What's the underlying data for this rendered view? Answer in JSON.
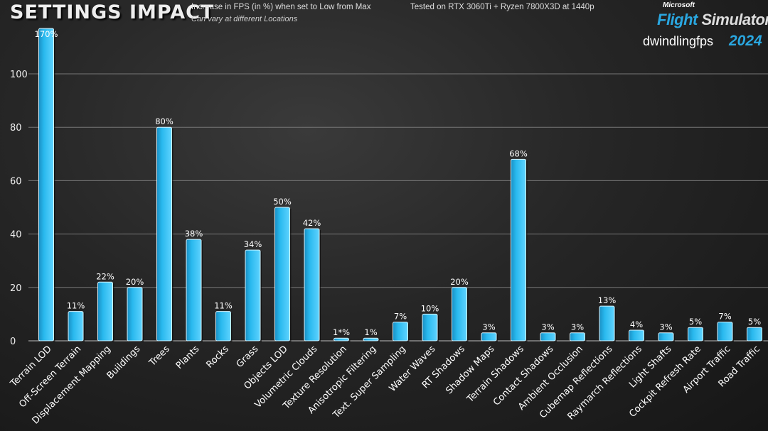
{
  "chart_data": {
    "type": "bar",
    "title": "SETTINGS IMPACT",
    "subtitle": "Increase in FPS (in %) when set to Low from Max",
    "note": "Can vary at different Locations",
    "test_info": "Tested on RTX 3060Ti + Ryzen 7800X3D at 1440p",
    "xlabel": "",
    "ylabel": "",
    "ylim": [
      0,
      117
    ],
    "yticks": [
      0,
      20,
      40,
      60,
      80,
      100
    ],
    "grid": true,
    "bar_color": "#29b9ee",
    "categories": [
      "Terrain LOD",
      "Off-Screen Terrain",
      "Displacement Mapping",
      "Buildings",
      "Trees",
      "Plants",
      "Rocks",
      "Grass",
      "Objects LOD",
      "Volumetric Clouds",
      "Texture Resolution",
      "Anisotropic Filtering",
      "Text. Super Sampling",
      "Water Waves",
      "RT Shadows",
      "Shadow Maps",
      "Terrain Shadows",
      "Contact Shadows",
      "Ambient Occlusion",
      "Cubemap Reflections",
      "Raymarch Reflections",
      "Light Shafts",
      "Cockpit Refresh Rate",
      "Airport Traffic",
      "Road Traffic"
    ],
    "values": [
      170,
      11,
      22,
      20,
      80,
      38,
      11,
      34,
      50,
      42,
      1,
      1,
      7,
      10,
      20,
      3,
      68,
      3,
      3,
      13,
      4,
      3,
      5,
      7,
      5
    ],
    "data_labels": [
      "170%",
      "11%",
      "22%",
      "20%",
      "80%",
      "38%",
      "11%",
      "34%",
      "50%",
      "42%",
      "1*%",
      "1%",
      "7%",
      "10%",
      "20%",
      "3%",
      "68%",
      "3%",
      "3%",
      "13%",
      "4%",
      "3%",
      "5%",
      "7%",
      "5%"
    ]
  },
  "logo": {
    "brand": "Microsoft",
    "product_a": "Flight",
    "product_b": "Simulator",
    "year": "2024",
    "author": "dwindlingfps"
  }
}
